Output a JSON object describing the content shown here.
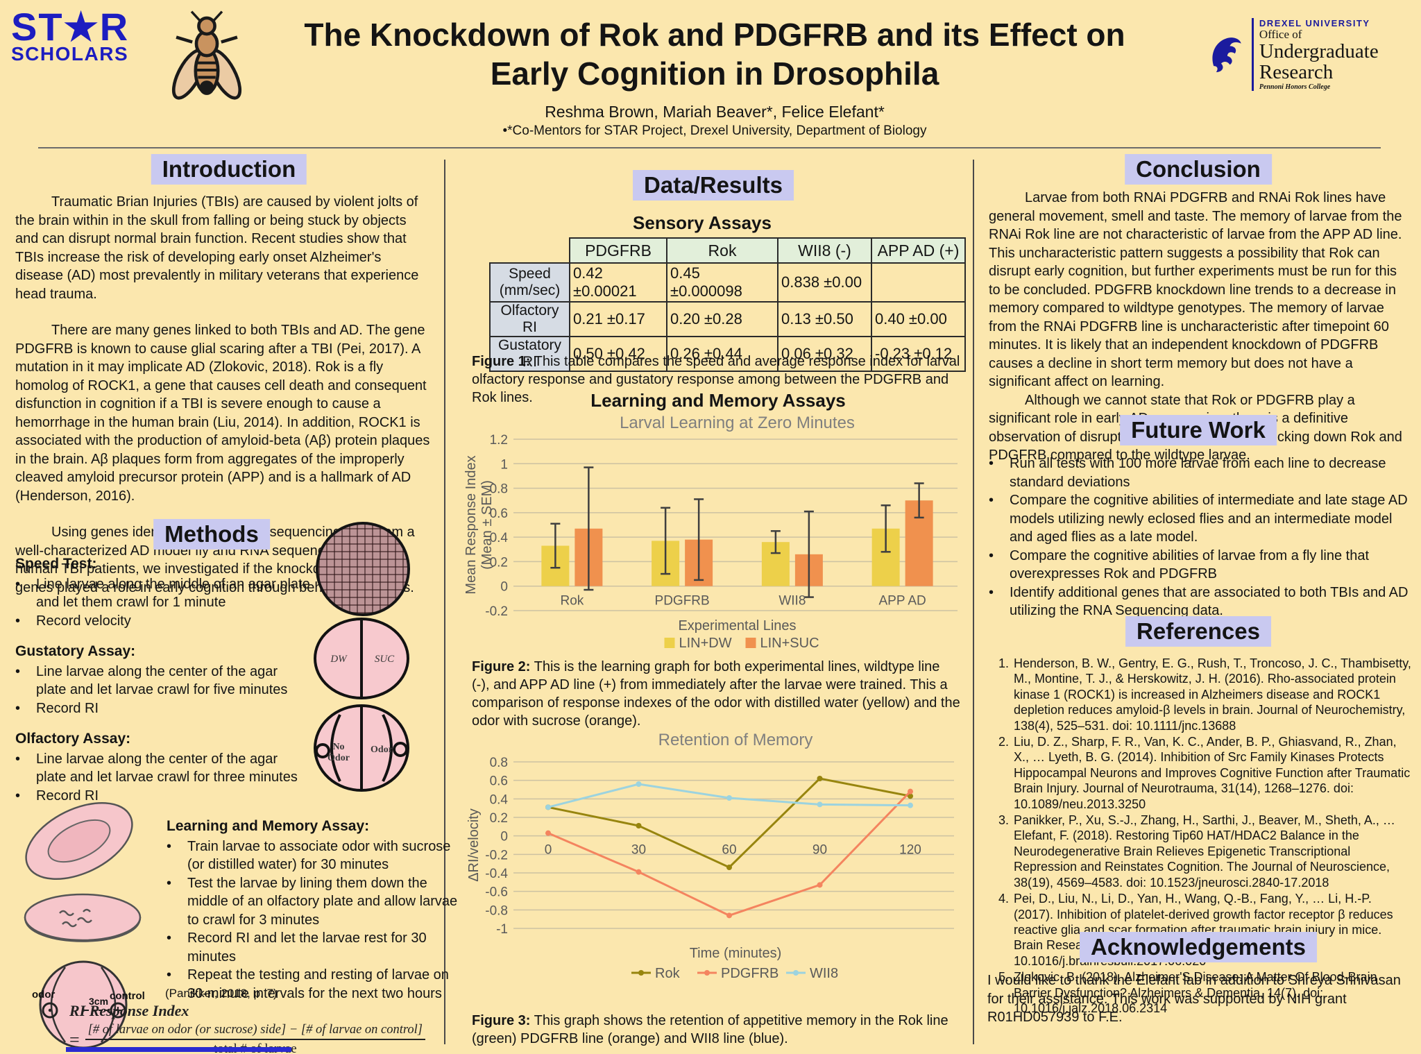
{
  "header": {
    "star_line1": "ST★R",
    "star_line2": "SCHOLARS",
    "title_line1": "The Knockdown of Rok and PDGFRB and its Effect on",
    "title_line2": "Early Cognition in Drosophila",
    "authors": "Reshma Brown, Mariah Beaver*, Felice Elefant*",
    "affiliation": "•*Co-Mentors for STAR Project, Drexel University, Department of Biology",
    "drexel": {
      "university": "DREXEL UNIVERSITY",
      "office": "Office of",
      "dept": "Undergraduate Research",
      "college": "Pennoni Honors College"
    }
  },
  "introduction": {
    "heading": "Introduction",
    "p1": "Traumatic Brian Injuries (TBIs) are caused by violent jolts of the brain within in the skull from falling or being stuck by objects and can disrupt normal brain function. Recent studies show that TBIs increase the risk of developing early onset Alzheimer's disease (AD) most prevalently in military veterans that experience head trauma.",
    "p2": "There are many genes linked to both TBIs and AD. The gene PDGFRB is known to cause glial scaring after a TBI (Pei, 2017). A mutation in it may implicate AD (Zlokovic, 2018). Rok is a fly homolog of ROCK1, a gene that causes cell death and consequent disfunction in cognition if a TBI is severe enough to cause a hemorrhage in the human brain (Liu, 2014). In addition, ROCK1 is associated with the production of amyloid-beta (Aβ) protein plaques in the brain. Aβ plaques form from aggregates of the improperly cleaved amyloid precursor protein (APP) and is a hallmark of AD (Henderson, 2016).",
    "p3": "Using genes identified in both RNA sequencing data from a well-characterized AD model fly and RNA sequencing data from human TBI patients, we investigated if the knockdown of these genes played a role in early cognition through behavioral assays."
  },
  "methods": {
    "heading": "Methods",
    "speed_title": "Speed Test:",
    "speed_b1": "Line larvae along the middle of an agar plate and let them crawl for 1 minute",
    "speed_b2": "Record velocity",
    "gust_title": "Gustatory Assay:",
    "gust_b1": "Line larvae along the center of the agar plate and let larvae crawl for five minutes",
    "gust_b2": "Record RI",
    "olf_title": "Olfactory Assay:",
    "olf_b1": "Line larvae along the center of the agar plate and let larvae crawl for three minutes",
    "olf_b2": "Record RI",
    "learn_title": "Learning and Memory Assay:",
    "learn_b1": "Train larvae to associate odor with sucrose (or distilled water) for 30 minutes",
    "learn_b2": "Test the larvae by lining them down the middle of an olfactory plate and allow larvae to crawl for 3 minutes",
    "learn_b3": "Record RI and let the larvae rest for 30 minutes",
    "learn_b4": "Repeat the testing and resting of larvae on 30-minute intervals for the next two hours",
    "plate_labels": {
      "dw": "DW",
      "suc": "SUC",
      "no_odor_line1": "No",
      "no_odor_line2": "Odor",
      "odor_cap": "Odor",
      "odor": "odor",
      "control": "control",
      "distance": "3cm"
    },
    "citation": "(Panikker, 2018, p. 7)",
    "formula_title": "RI Response Index",
    "formula_equals": "=",
    "formula_numerator": "[# of larvae on odor (or sucrose) side] − [# of larvae on control]",
    "formula_denominator": "total # of larvae"
  },
  "results": {
    "heading": "Data/Results",
    "table_title": "Sensory Assays",
    "table": {
      "columns": [
        "",
        "PDGFRB",
        "Rok",
        "WII8 (-)",
        "APP AD (+)"
      ],
      "rows": [
        {
          "label": "Speed (mm/sec)",
          "values": [
            "0.42 ±0.00021",
            "0.45 ±0.000098",
            "0.838 ±0.00",
            ""
          ]
        },
        {
          "label": "Olfactory RI",
          "values": [
            "0.21 ±0.17",
            "0.20 ±0.28",
            "0.13 ±0.50",
            "0.40 ±0.00"
          ]
        },
        {
          "label": "Gustatory RI",
          "values": [
            "0.50 ±0.42",
            "0.26 ±0.44",
            "0.06 ±0.32",
            "-0.23 ±0.12"
          ]
        }
      ]
    },
    "fig1_bold": "Figure 1:",
    "fig1_text": " This table compares the speed and average response index for larval olfactory response and gustatory response among between the PDGFRB and Rok lines.",
    "subheading": "Learning and Memory Assays",
    "fig2_bold": "Figure 2:",
    "fig2_text": " This is the learning graph for both experimental lines, wildtype line (-), and APP AD line (+) from immediately after the larvae were trained. This a comparison of response indexes of the odor with distilled water (yellow) and the odor with sucrose (orange).",
    "fig3_bold": "Figure 3:",
    "fig3_text": " This graph shows the retention of appetitive memory in the Rok line (green) PDGFRB line (orange) and WII8 line (blue)."
  },
  "chart_data": [
    {
      "type": "bar",
      "title": "Larval Learning at Zero Minutes",
      "categories": [
        "Rok",
        "PDGFRB",
        "WII8",
        "APP AD"
      ],
      "series": [
        {
          "name": "LIN+DW",
          "color": "#EDD04A",
          "values": [
            0.33,
            0.37,
            0.36,
            0.47
          ],
          "sem": [
            0.18,
            0.27,
            0.09,
            0.19
          ]
        },
        {
          "name": "LIN+SUC",
          "color": "#F0914E",
          "values": [
            0.47,
            0.38,
            0.26,
            0.7
          ],
          "sem": [
            0.5,
            0.33,
            0.35,
            0.14
          ]
        }
      ],
      "xlabel": "Experimental Lines",
      "ylabel": "Mean Response Index\n(Mean ± SEM)",
      "ylim": [
        -0.2,
        1.2
      ],
      "yticks": [
        1.2,
        1,
        0.8,
        0.6,
        0.4,
        0.2,
        0,
        -0.2
      ],
      "grid": true,
      "legend_position": "bottom"
    },
    {
      "type": "line",
      "title": "Retention of Memory",
      "x": [
        0,
        30,
        60,
        90,
        120
      ],
      "series": [
        {
          "name": "Rok",
          "color": "#97850E",
          "values": [
            0.31,
            0.11,
            -0.34,
            0.62,
            0.43
          ]
        },
        {
          "name": "PDGFRB",
          "color": "#F4845F",
          "values": [
            0.03,
            -0.39,
            -0.86,
            -0.53,
            0.48
          ]
        },
        {
          "name": "WII8",
          "color": "#9CD3DF",
          "values": [
            0.31,
            0.56,
            0.41,
            0.34,
            0.33
          ]
        }
      ],
      "xlabel": "Time (minutes)",
      "ylabel": "ΔRI/velocity",
      "ylim": [
        -1,
        0.8
      ],
      "yticks": [
        0.8,
        0.6,
        0.4,
        0.2,
        0,
        -0.2,
        -0.4,
        -0.6,
        -0.8,
        -1
      ],
      "grid": true,
      "legend_position": "bottom"
    }
  ],
  "conclusion": {
    "heading": "Conclusion",
    "p1": "Larvae from both RNAi PDGFRB and RNAi Rok lines have general movement, smell and taste. The memory of larvae from the RNAi Rok line are not characteristic of larvae from the APP AD line. This uncharacteristic pattern suggests a possibility that Rok can disrupt early cognition, but further experiments must be run for this to be concluded. PDGFRB knockdown line trends to a decrease in memory compared to wildtype genotypes. The memory of larvae from the RNAi PDGFRB line is uncharacteristic after timepoint 60 minutes. It is likely that an independent knockdown of PDGFRB causes a decline in short term memory but does not have a significant affect on learning.",
    "p2": "Although we cannot state that Rok or PDGFRB play a significant role in early AD progression, there is a definitive observation of disruption in cognition when knocking down Rok and PDGFRB compared to the wildtype larvae."
  },
  "future_work": {
    "heading": "Future Work",
    "b1": "Run all tests with 100 more larvae from each line to decrease standard deviations",
    "b2": "Compare the cognitive abilities of intermediate and late stage AD models utilizing newly eclosed flies and an intermediate model and aged flies as a late model.",
    "b3": "Compare the cognitive abilities of larvae from a fly line that overexpresses Rok and PDGFRB",
    "b4": "Identify additional genes that are associated to both TBIs and AD utilizing the RNA Sequencing data."
  },
  "references": {
    "heading": "References",
    "items": [
      "Henderson, B. W., Gentry, E. G., Rush, T., Troncoso, J. C., Thambisetty, M., Montine, T. J., & Herskowitz, J. H. (2016). Rho-associated protein kinase 1 (ROCK1) is increased in Alzheimers disease and ROCK1 depletion reduces amyloid-β levels in brain. Journal of Neurochemistry, 138(4), 525–531. doi: 10.1111/jnc.13688",
      "Liu, D. Z., Sharp, F. R., Van, K. C., Ander, B. P., Ghiasvand, R., Zhan, X., … Lyeth, B. G. (2014). Inhibition of Src Family Kinases Protects Hippocampal Neurons and Improves Cognitive Function after Traumatic Brain Injury. Journal of Neurotrauma, 31(14), 1268–1276. doi: 10.1089/neu.2013.3250",
      "Panikker, P., Xu, S.-J., Zhang, H., Sarthi, J., Beaver, M., Sheth, A., … Elefant, F. (2018). Restoring Tip60 HAT/HDAC2 Balance in the Neurodegenerative Brain Relieves Epigenetic Transcriptional Repression and Reinstates Cognition. The Journal of Neuroscience, 38(19), 4569–4583. doi: 10.1523/jneurosci.2840-17.2018",
      "Pei, D., Liu, N., Li, D., Yan, H., Wang, Q.-B., Fang, Y., … Li, H.-P. (2017). Inhibition of platelet-derived growth factor receptor β reduces reactive glia and scar formation after traumatic brain injury in mice. Brain Research Bulletin, 134, 121–127. doi: 10.1016/j.brainresbull.2017.06.020",
      "Zlokovic, B. (2018). Alzheimer'S Disease: A Matter Of Blood-Brain Barrier Dysfunction? Alzheimers & Dementia, 14(7). doi: 10.1016/j.jalz.2018.06.2314"
    ]
  },
  "acknowledgements": {
    "heading": "Acknowledgements",
    "text": "I would like to thank the Elefant lab in addition to Shreya Srinivasan for their assistance. This work was supported by NIH grant R01HD057939 to F.E."
  }
}
